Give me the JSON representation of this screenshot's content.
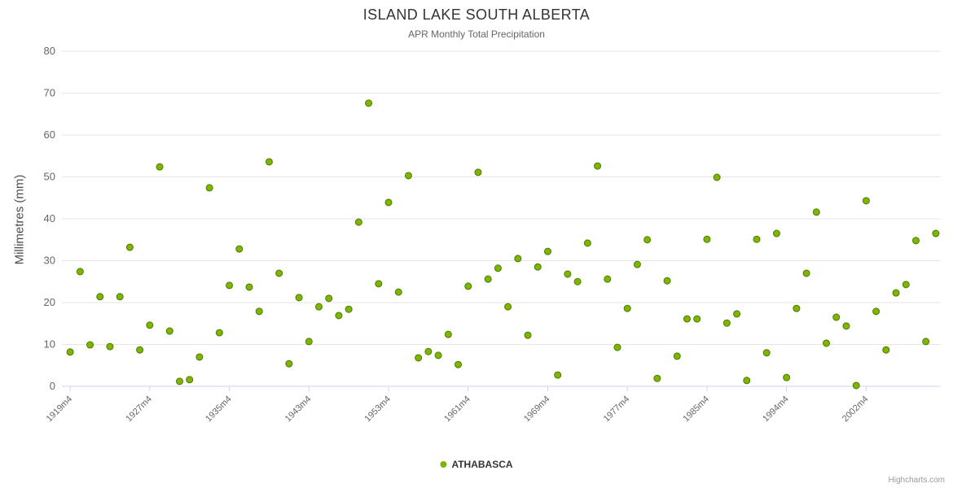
{
  "credits": "Highcharts.com",
  "chart_data": {
    "type": "scatter",
    "title": "ISLAND LAKE SOUTH ALBERTA",
    "subtitle": "APR Monthly Total Precipitation",
    "ylabel": "Millimetres (mm)",
    "xlabel": "",
    "ylim": [
      0,
      80
    ],
    "y_ticks": [
      0,
      10,
      20,
      30,
      40,
      50,
      60,
      70,
      80
    ],
    "x_tick_labels": [
      "1919m4",
      "1927m4",
      "1935m4",
      "1943m4",
      "1953m4",
      "1961m4",
      "1969m4",
      "1977m4",
      "1985m4",
      "1994m4",
      "2002m4"
    ],
    "x_tick_indices": [
      0,
      8,
      16,
      24,
      32,
      40,
      48,
      56,
      64,
      72,
      80
    ],
    "grid": "horizontal-only",
    "legend_position": "bottom-center",
    "marker": {
      "shape": "circle",
      "color": "#7db500",
      "border_color": "#4e7a00"
    },
    "series": [
      {
        "name": "ATHABASCA",
        "color": "#7db500",
        "values": [
          8.2,
          27.4,
          9.9,
          21.4,
          9.5,
          21.4,
          33.2,
          8.7,
          14.6,
          52.4,
          13.2,
          1.2,
          1.6,
          7.0,
          47.4,
          12.8,
          24.1,
          32.8,
          23.7,
          17.9,
          53.6,
          27.0,
          5.4,
          21.2,
          10.7,
          19.0,
          21.0,
          16.9,
          18.4,
          39.2,
          67.6,
          24.5,
          43.9,
          22.5,
          50.3,
          6.8,
          8.3,
          7.4,
          12.4,
          5.2,
          23.9,
          51.1,
          25.6,
          28.2,
          19.0,
          30.5,
          12.2,
          28.5,
          32.2,
          2.7,
          26.8,
          25.0,
          34.2,
          52.6,
          25.6,
          9.3,
          18.6,
          29.1,
          35.0,
          1.9,
          25.2,
          7.2,
          16.1,
          16.1,
          35.1,
          49.9,
          15.1,
          17.3,
          1.4,
          35.1,
          8.0,
          36.5,
          2.1,
          18.6,
          27.0,
          41.6,
          10.3,
          16.5,
          14.4,
          0.2,
          44.3,
          17.9,
          8.7,
          22.3,
          24.3,
          34.8,
          10.7,
          36.5
        ]
      }
    ]
  }
}
